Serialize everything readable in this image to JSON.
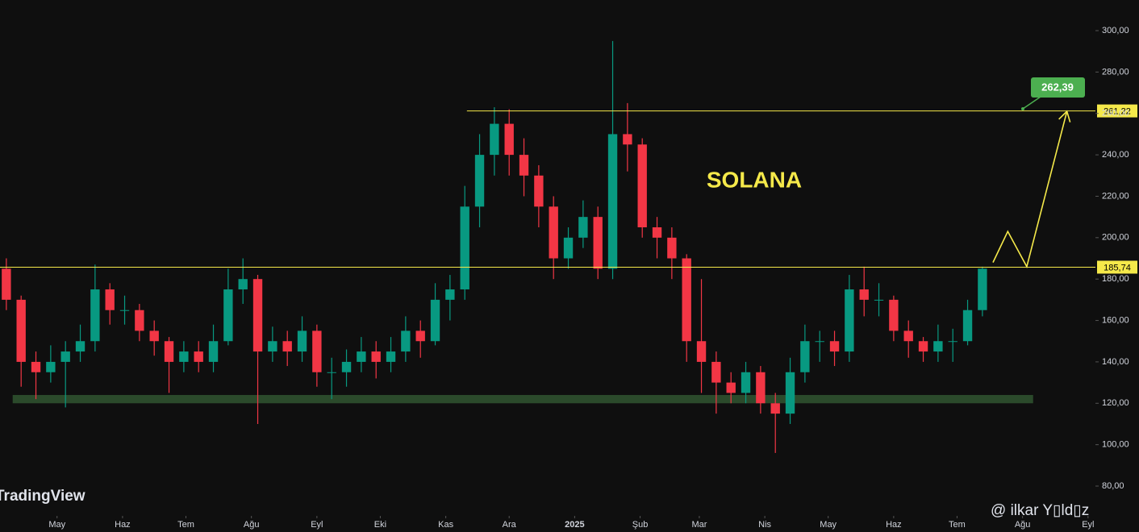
{
  "chart_data": {
    "type": "candlestick",
    "title": "SOLANA",
    "watermark": "TradingView",
    "author": "@ ilkar Y▯ld▯z",
    "x": [
      -24,
      -17,
      -10,
      -3,
      4,
      11,
      18,
      25,
      32,
      39,
      46,
      53,
      60,
      67,
      74,
      81,
      88,
      95,
      102,
      109,
      116,
      123,
      130,
      137,
      144,
      151,
      158,
      165,
      172,
      179,
      186,
      193,
      200,
      207,
      214,
      221,
      228,
      235,
      242,
      249,
      256,
      263,
      270,
      277,
      284,
      291,
      298,
      305,
      312,
      319,
      326,
      333,
      340,
      347,
      354,
      361,
      368,
      375,
      382,
      389,
      396,
      403,
      410,
      417,
      424,
      431,
      438
    ],
    "open": [
      185,
      170,
      140,
      135,
      140,
      145,
      150,
      175,
      165,
      165,
      155,
      150,
      140,
      145,
      140,
      150,
      175,
      180,
      145,
      150,
      145,
      155,
      135,
      135,
      140,
      145,
      140,
      145,
      155,
      150,
      170,
      175,
      215,
      240,
      255,
      240,
      230,
      215,
      190,
      200,
      210,
      185,
      250,
      245,
      205,
      200,
      190,
      150,
      140,
      130,
      125,
      135,
      120,
      115,
      135,
      150,
      150,
      145,
      175,
      170,
      170,
      155,
      150,
      145,
      150,
      150,
      165
    ],
    "close": [
      170,
      140,
      135,
      140,
      145,
      150,
      175,
      165,
      165,
      155,
      150,
      140,
      145,
      140,
      150,
      175,
      180,
      145,
      150,
      145,
      155,
      135,
      135,
      140,
      145,
      140,
      145,
      155,
      150,
      170,
      175,
      215,
      240,
      255,
      240,
      230,
      215,
      190,
      200,
      210,
      185,
      250,
      245,
      205,
      200,
      190,
      150,
      140,
      130,
      125,
      135,
      120,
      115,
      135,
      150,
      150,
      145,
      175,
      170,
      170,
      155,
      150,
      145,
      150,
      150,
      165,
      185
    ],
    "high": [
      190,
      172,
      145,
      148,
      150,
      158,
      187,
      178,
      172,
      168,
      160,
      152,
      150,
      150,
      158,
      185,
      190,
      182,
      157,
      155,
      162,
      158,
      142,
      146,
      152,
      150,
      152,
      162,
      160,
      178,
      182,
      225,
      250,
      263,
      262,
      248,
      235,
      220,
      205,
      218,
      215,
      295,
      265,
      248,
      210,
      205,
      192,
      180,
      145,
      135,
      140,
      138,
      125,
      142,
      158,
      155,
      155,
      182,
      186,
      178,
      172,
      160,
      152,
      158,
      156,
      170,
      186
    ],
    "low": [
      165,
      128,
      122,
      130,
      118,
      140,
      145,
      158,
      158,
      150,
      143,
      125,
      135,
      135,
      135,
      148,
      168,
      110,
      140,
      138,
      140,
      128,
      122,
      128,
      135,
      132,
      135,
      140,
      142,
      148,
      160,
      170,
      205,
      230,
      230,
      220,
      205,
      180,
      185,
      195,
      180,
      180,
      232,
      200,
      190,
      180,
      140,
      125,
      115,
      120,
      120,
      115,
      96,
      110,
      130,
      140,
      138,
      140,
      162,
      162,
      150,
      142,
      140,
      140,
      140,
      148,
      162
    ],
    "up_color": "#089981",
    "down_color": "#f23645",
    "xlim": [
      -27,
      491.5
    ],
    "ylim": [
      65.6,
      314.8
    ],
    "yticks": [
      {
        "value": 80,
        "label": "80,00"
      },
      {
        "value": 100,
        "label": "100,00"
      },
      {
        "value": 120,
        "label": "120,00"
      },
      {
        "value": 140,
        "label": "140,00"
      },
      {
        "value": 160,
        "label": "160,00"
      },
      {
        "value": 180,
        "label": "180,00"
      },
      {
        "value": 200,
        "label": "200,00"
      },
      {
        "value": 220,
        "label": "220,00"
      },
      {
        "value": 240,
        "label": "240,00"
      },
      {
        "value": 260,
        "label": "260,00"
      },
      {
        "value": 280,
        "label": "280,00"
      },
      {
        "value": 300,
        "label": "300,00"
      }
    ],
    "xticks": [
      {
        "value": 0,
        "label": "May"
      },
      {
        "value": 31,
        "label": "Haz"
      },
      {
        "value": 61,
        "label": "Tem"
      },
      {
        "value": 92,
        "label": "Ağu"
      },
      {
        "value": 123,
        "label": "Eyl"
      },
      {
        "value": 153,
        "label": "Eki"
      },
      {
        "value": 184,
        "label": "Kas"
      },
      {
        "value": 214,
        "label": "Ara"
      },
      {
        "value": 245,
        "label": "2025"
      },
      {
        "value": 276,
        "label": "Şub"
      },
      {
        "value": 304,
        "label": "Mar"
      },
      {
        "value": 335,
        "label": "Nis"
      },
      {
        "value": 365,
        "label": "May"
      },
      {
        "value": 396,
        "label": "Haz"
      },
      {
        "value": 426,
        "label": "Tem"
      },
      {
        "value": 457,
        "label": "Ağu"
      },
      {
        "value": 488,
        "label": "Eyl"
      }
    ],
    "levels": [
      {
        "value": 261.22,
        "label": "261,22",
        "start": 194
      },
      {
        "value": 185.74,
        "label": "185,74",
        "start": -27
      }
    ],
    "level_color": "#f5e94a",
    "zone": [
      120,
      124
    ],
    "zone_x": [
      -21,
      462
    ],
    "zone_color": "#2b4a2b",
    "projection": {
      "x": [
        443,
        450,
        459,
        478
      ],
      "y": [
        188,
        203,
        186,
        261
      ]
    },
    "target_label": "262,39",
    "target_color": "#4caf50"
  }
}
